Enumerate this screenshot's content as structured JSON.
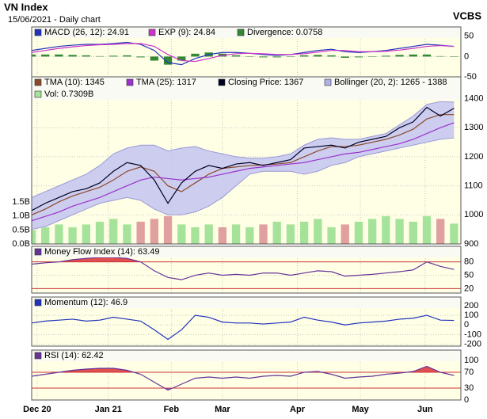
{
  "header": {
    "title": "VN Index",
    "subtitle": "15/06/2021 - Daily chart",
    "brand": "VCBS"
  },
  "chart_data": [
    {
      "type": "line",
      "x": [
        0,
        4,
        8,
        12,
        16,
        20,
        24,
        28,
        32,
        36,
        40,
        44,
        48,
        52,
        56,
        60,
        64,
        68,
        72,
        76,
        80,
        84,
        88,
        92,
        96,
        100,
        104,
        108,
        112,
        116,
        120,
        124
      ],
      "xlim": [
        0,
        126
      ],
      "ylim": [
        -50,
        73
      ],
      "yticks": [
        50,
        0,
        -50
      ],
      "grid": true,
      "series": [
        {
          "name": "MACD (26, 12): 24.91",
          "color": "#2233bb",
          "kind": "line",
          "values": [
            15,
            20,
            25,
            28,
            30,
            30,
            32,
            35,
            30,
            15,
            -15,
            -20,
            -5,
            5,
            10,
            10,
            8,
            5,
            3,
            5,
            10,
            15,
            18,
            12,
            10,
            12,
            15,
            20,
            25,
            30,
            28,
            25
          ]
        },
        {
          "name": "EXP (9): 24.84",
          "color": "#cc33cc",
          "kind": "line",
          "values": [
            10,
            15,
            20,
            24,
            27,
            29,
            30,
            32,
            32,
            25,
            5,
            -10,
            -12,
            -5,
            3,
            7,
            8,
            7,
            5,
            5,
            7,
            11,
            15,
            15,
            12,
            12,
            13,
            16,
            20,
            25,
            27,
            25
          ]
        },
        {
          "name": "Divergence: 0.0758",
          "color": "#338833",
          "kind": "bar",
          "values": [
            5,
            5,
            5,
            4,
            3,
            1,
            2,
            3,
            -2,
            -10,
            -20,
            -10,
            7,
            10,
            7,
            3,
            0,
            -2,
            -2,
            0,
            3,
            4,
            3,
            -3,
            -2,
            0,
            2,
            4,
            5,
            5,
            1,
            0
          ]
        }
      ]
    },
    {
      "type": "line",
      "x": [
        0,
        4,
        8,
        12,
        16,
        20,
        24,
        28,
        32,
        36,
        40,
        44,
        48,
        52,
        56,
        60,
        64,
        68,
        72,
        76,
        80,
        84,
        88,
        92,
        96,
        100,
        104,
        108,
        112,
        116,
        120,
        124
      ],
      "xlim": [
        0,
        126
      ],
      "ylim": [
        900,
        1475
      ],
      "yticks": [
        1400,
        1300,
        1200,
        1100,
        1000,
        900
      ],
      "grid": true,
      "y2lim": [
        0,
        6
      ],
      "y2ticks": [
        {
          "value": 1.5,
          "label": "1.5B"
        },
        {
          "value": 1,
          "label": "1.0B"
        },
        {
          "value": 0.5,
          "label": "0.5B"
        },
        {
          "value": 0,
          "label": "0.0B"
        }
      ],
      "series": [
        {
          "name": "TMA (10): 1345",
          "color": "#8b4a2b",
          "kind": "line",
          "values": [
            1000,
            1020,
            1045,
            1065,
            1080,
            1095,
            1120,
            1150,
            1165,
            1150,
            1100,
            1080,
            1110,
            1140,
            1160,
            1165,
            1170,
            1172,
            1175,
            1180,
            1200,
            1220,
            1235,
            1235,
            1240,
            1250,
            1260,
            1275,
            1295,
            1330,
            1345,
            1345
          ]
        },
        {
          "name": "TMA (25): 1317",
          "color": "#9933cc",
          "kind": "line",
          "values": [
            980,
            995,
            1010,
            1030,
            1045,
            1060,
            1080,
            1100,
            1120,
            1130,
            1125,
            1120,
            1125,
            1130,
            1140,
            1150,
            1160,
            1165,
            1170,
            1175,
            1180,
            1190,
            1200,
            1210,
            1215,
            1225,
            1235,
            1245,
            1260,
            1280,
            1300,
            1317
          ]
        },
        {
          "name": "Closing Price: 1367",
          "color": "#000022",
          "kind": "line",
          "values": [
            1015,
            1040,
            1060,
            1080,
            1090,
            1110,
            1150,
            1180,
            1170,
            1120,
            1040,
            1110,
            1150,
            1170,
            1160,
            1175,
            1180,
            1170,
            1180,
            1190,
            1230,
            1235,
            1240,
            1230,
            1250,
            1260,
            1270,
            1300,
            1320,
            1370,
            1340,
            1367
          ]
        },
        {
          "name": "Bollinger (20, 2): 1265 - 1388",
          "color": "#c4c4f0",
          "kind": "band",
          "upper": [
            1060,
            1080,
            1100,
            1120,
            1140,
            1170,
            1210,
            1230,
            1240,
            1240,
            1220,
            1230,
            1235,
            1220,
            1210,
            1200,
            1195,
            1195,
            1200,
            1210,
            1240,
            1260,
            1265,
            1260,
            1260,
            1270,
            1280,
            1310,
            1340,
            1380,
            1390,
            1388
          ],
          "lower": [
            950,
            960,
            980,
            1000,
            1020,
            1040,
            1050,
            1060,
            1050,
            1020,
            1000,
            1000,
            1010,
            1030,
            1060,
            1100,
            1140,
            1150,
            1150,
            1150,
            1140,
            1150,
            1170,
            1180,
            1200,
            1210,
            1220,
            1230,
            1240,
            1250,
            1260,
            1265
          ]
        },
        {
          "name": "Vol: 0.7309B",
          "color": "#a6e39a",
          "down_color": "#e0a0a0",
          "kind": "bar",
          "axis": "y2",
          "values": [
            0.5,
            0.6,
            0.7,
            0.6,
            0.7,
            0.8,
            0.9,
            0.7,
            0.8,
            0.9,
            1.0,
            0.7,
            0.6,
            0.7,
            0.6,
            0.7,
            0.6,
            0.7,
            0.8,
            0.7,
            0.8,
            0.9,
            0.6,
            0.7,
            0.8,
            0.9,
            1.0,
            0.9,
            0.8,
            1.0,
            0.9,
            0.73
          ]
        }
      ]
    },
    {
      "type": "line",
      "x": [
        0,
        4,
        8,
        12,
        16,
        20,
        24,
        28,
        32,
        36,
        40,
        44,
        48,
        52,
        56,
        60,
        64,
        68,
        72,
        76,
        80,
        84,
        88,
        92,
        96,
        100,
        104,
        108,
        112,
        116,
        120,
        124
      ],
      "xlim": [
        0,
        126
      ],
      "ylim": [
        10,
        115
      ],
      "yticks": [
        80,
        50,
        20
      ],
      "grid": true,
      "levels": [
        80,
        20
      ],
      "fill_colors": [
        "#e05050",
        "#7070e0"
      ],
      "series": [
        {
          "name": "Money Flow Index (14): 63.49",
          "color": "#663399",
          "kind": "line",
          "values": [
            75,
            78,
            80,
            85,
            88,
            90,
            90,
            88,
            80,
            60,
            45,
            40,
            50,
            55,
            50,
            52,
            50,
            55,
            55,
            50,
            55,
            60,
            58,
            48,
            50,
            52,
            55,
            58,
            62,
            80,
            70,
            63
          ]
        }
      ]
    },
    {
      "type": "line",
      "x": [
        0,
        4,
        8,
        12,
        16,
        20,
        24,
        28,
        32,
        36,
        40,
        44,
        48,
        52,
        56,
        60,
        64,
        68,
        72,
        76,
        80,
        84,
        88,
        92,
        96,
        100,
        104,
        108,
        112,
        116,
        120,
        124
      ],
      "xlim": [
        0,
        126
      ],
      "ylim": [
        -220,
        290
      ],
      "yticks": [
        200,
        100,
        0,
        -100,
        -200
      ],
      "grid": true,
      "series": [
        {
          "name": "Momentum (12): 46.9",
          "color": "#2233bb",
          "kind": "line",
          "values": [
            20,
            40,
            50,
            60,
            40,
            50,
            80,
            60,
            40,
            -50,
            -150,
            -50,
            100,
            80,
            30,
            20,
            20,
            10,
            20,
            30,
            80,
            50,
            30,
            0,
            20,
            30,
            40,
            60,
            70,
            100,
            50,
            47
          ]
        }
      ]
    },
    {
      "type": "line",
      "x": [
        0,
        4,
        8,
        12,
        16,
        20,
        24,
        28,
        32,
        36,
        40,
        44,
        48,
        52,
        56,
        60,
        64,
        68,
        72,
        76,
        80,
        84,
        88,
        92,
        96,
        100,
        104,
        108,
        112,
        116,
        120,
        124
      ],
      "xlim": [
        0,
        126
      ],
      "ylim": [
        0,
        126
      ],
      "yticks": [
        100,
        70,
        30,
        0
      ],
      "grid": true,
      "levels": [
        70,
        30
      ],
      "fill_colors": [
        "#e05050",
        "#7070e0"
      ],
      "xticks": [
        {
          "value": 1.6,
          "label": "Dec 20"
        },
        {
          "value": 22.5,
          "label": "Jan 21"
        },
        {
          "value": 41,
          "label": "Feb"
        },
        {
          "value": 56,
          "label": "Mar"
        },
        {
          "value": 78,
          "label": "Apr"
        },
        {
          "value": 96.5,
          "label": "May"
        },
        {
          "value": 115.5,
          "label": "Jun"
        }
      ],
      "series": [
        {
          "name": "RSI (14): 62.42",
          "color": "#663399",
          "kind": "line",
          "values": [
            60,
            65,
            70,
            75,
            78,
            80,
            80,
            75,
            65,
            45,
            25,
            40,
            55,
            58,
            55,
            58,
            55,
            60,
            62,
            60,
            70,
            72,
            65,
            55,
            58,
            60,
            65,
            68,
            72,
            85,
            70,
            62
          ]
        }
      ]
    }
  ]
}
